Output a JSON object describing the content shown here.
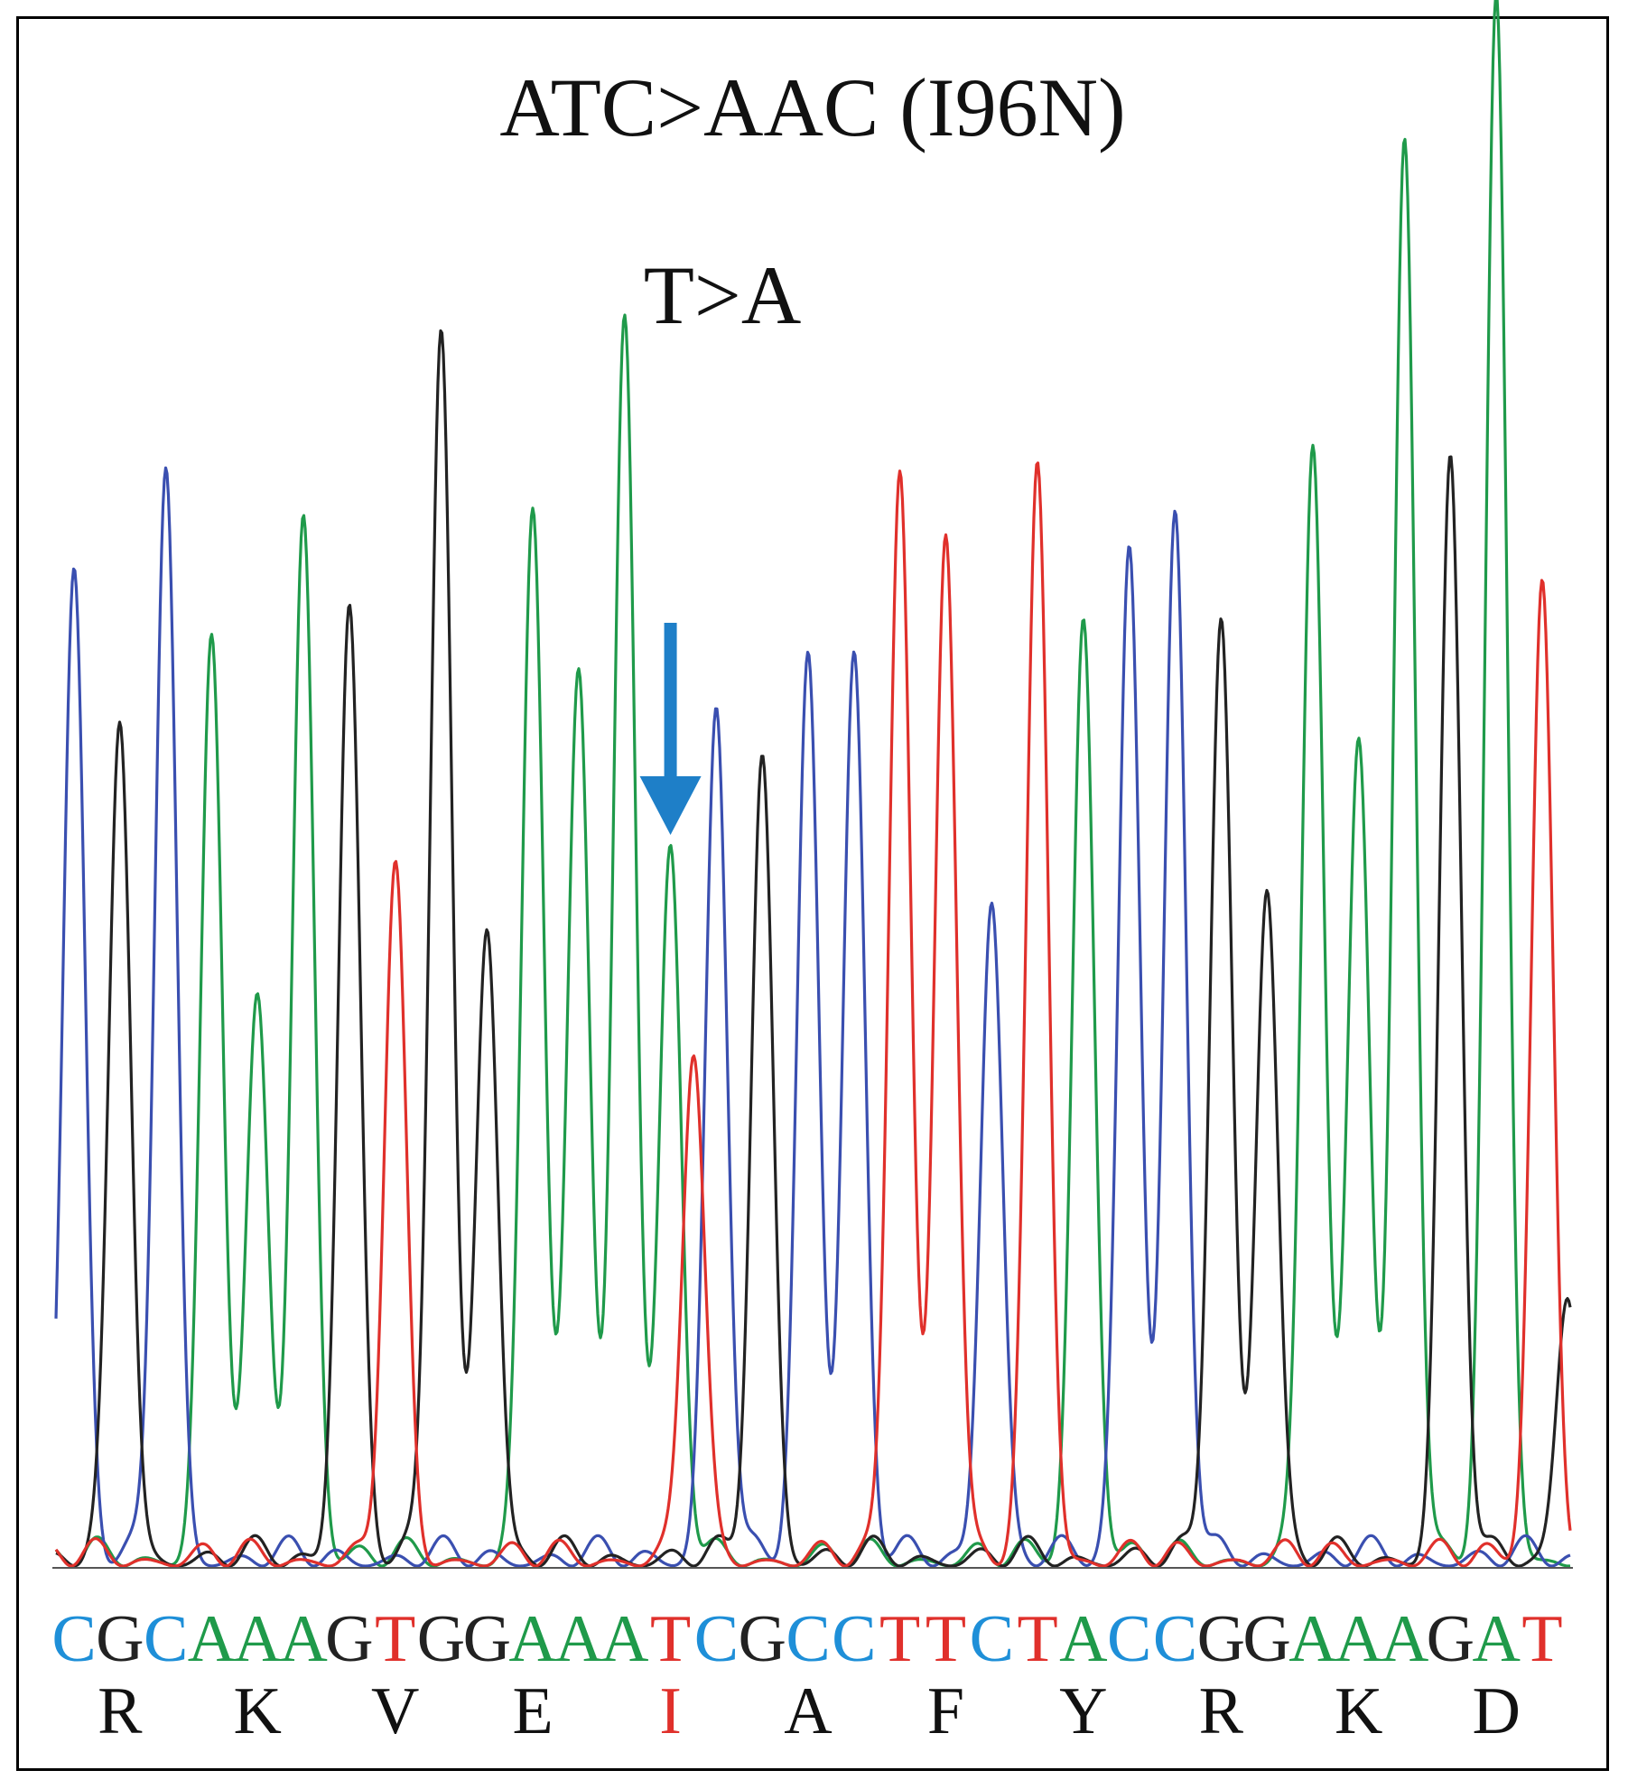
{
  "title": "ATC>AAC (I96N)",
  "annotation": "T>A",
  "colors": {
    "A": "#1f9a4a",
    "C": "#3a4fb0",
    "G": "#222222",
    "T": "#e0302b",
    "C_label": "#1e8fd8",
    "arrow": "#1e7fc8",
    "highlight": "#e0302b",
    "frame": "#000000"
  },
  "sequence": [
    "C",
    "G",
    "C",
    "A",
    "A",
    "A",
    "G",
    "T",
    "G",
    "G",
    "A",
    "A",
    "A",
    "T",
    "C",
    "G",
    "C",
    "C",
    "T",
    "T",
    "C",
    "T",
    "A",
    "C",
    "C",
    "G",
    "G",
    "A",
    "A",
    "A",
    "G",
    "A",
    "T"
  ],
  "amino_acids": [
    "R",
    "K",
    "V",
    "E",
    "I",
    "A",
    "F",
    "Y",
    "R",
    "K",
    "D"
  ],
  "highlight_amino_acid_index": 4,
  "mutation_base_index": 13,
  "peaks": [
    {
      "base": "C",
      "height": 0.78
    },
    {
      "base": "G",
      "height": 0.66
    },
    {
      "base": "C",
      "height": 0.86
    },
    {
      "base": "A",
      "height": 0.72
    },
    {
      "base": "A",
      "height": 0.43
    },
    {
      "base": "A",
      "height": 0.82
    },
    {
      "base": "G",
      "height": 0.75
    },
    {
      "base": "T",
      "height": 0.54
    },
    {
      "base": "G",
      "height": 0.97
    },
    {
      "base": "G",
      "height": 0.5
    },
    {
      "base": "A",
      "height": 0.83
    },
    {
      "base": "A",
      "height": 0.7
    },
    {
      "base": "A",
      "height": 0.98
    },
    {
      "base": "A",
      "height": 0.55
    },
    {
      "base": "C",
      "height": 0.67
    },
    {
      "base": "G",
      "height": 0.63
    },
    {
      "base": "C",
      "height": 0.71
    },
    {
      "base": "C",
      "height": 0.71
    },
    {
      "base": "T",
      "height": 0.86
    },
    {
      "base": "T",
      "height": 0.81
    },
    {
      "base": "C",
      "height": 0.52
    },
    {
      "base": "T",
      "height": 0.86
    },
    {
      "base": "A",
      "height": 0.74
    },
    {
      "base": "C",
      "height": 0.8
    },
    {
      "base": "C",
      "height": 0.82
    },
    {
      "base": "G",
      "height": 0.74
    },
    {
      "base": "G",
      "height": 0.53
    },
    {
      "base": "A",
      "height": 0.88
    },
    {
      "base": "A",
      "height": 0.65
    },
    {
      "base": "A",
      "height": 1.12
    },
    {
      "base": "G",
      "height": 0.86
    },
    {
      "base": "A",
      "height": 1.22
    },
    {
      "base": "T",
      "height": 0.77
    }
  ],
  "secondary_peak": {
    "base": "T",
    "position": 13.5,
    "height": 0.4
  },
  "tail_peak": {
    "base": "G",
    "height": 0.21
  }
}
